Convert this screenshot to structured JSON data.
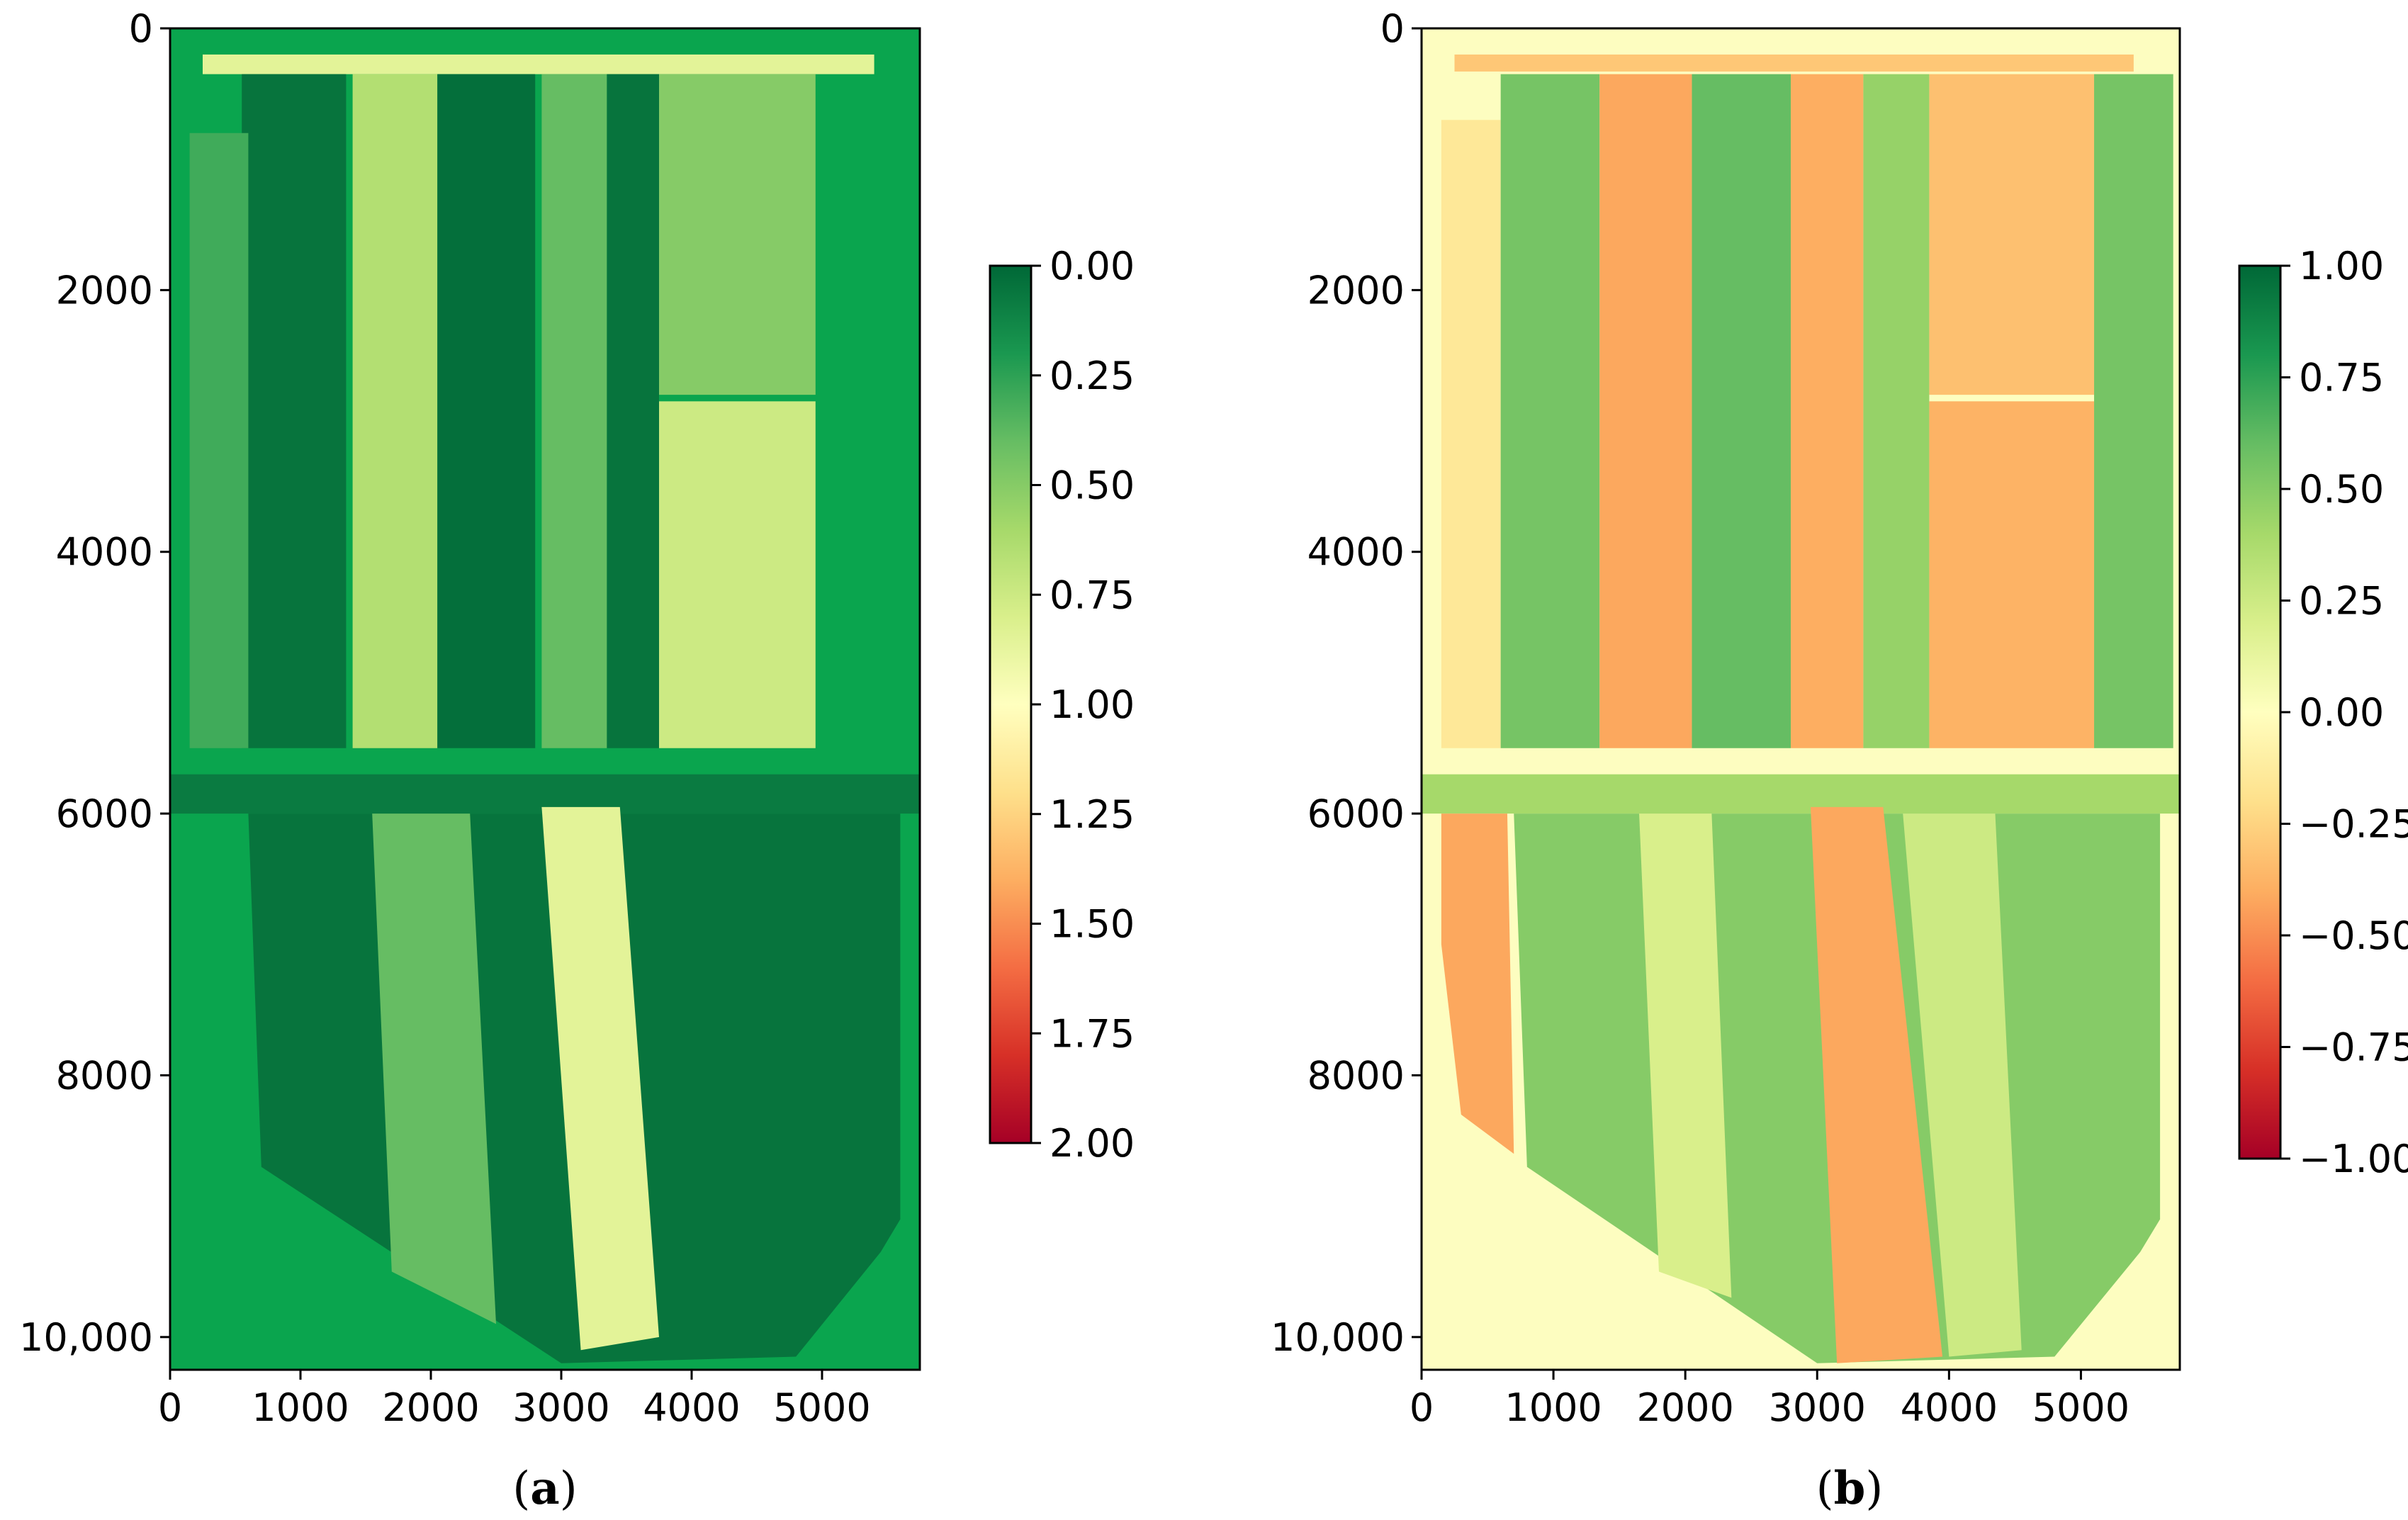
{
  "chart_data": [
    {
      "type": "heatmap",
      "panel_label": "a",
      "title": "",
      "xlabel": "",
      "ylabel": "",
      "xlim": [
        0,
        5750
      ],
      "ylim": [
        10250,
        0
      ],
      "x_ticks": [
        0,
        1000,
        2000,
        3000,
        4000,
        5000
      ],
      "x_tick_labels": [
        "0",
        "1000",
        "2000",
        "3000",
        "4000",
        "5000"
      ],
      "y_ticks": [
        0,
        2000,
        4000,
        6000,
        8000,
        10000
      ],
      "y_tick_labels": [
        "0",
        "2000",
        "4000",
        "6000",
        "8000",
        "10,000"
      ],
      "colormap": "RdYlGn (reversed)",
      "colorbar": {
        "min": 0.0,
        "max": 2.0,
        "inverted": true,
        "ticks": [
          0.0,
          0.25,
          0.5,
          0.75,
          1.0,
          1.25,
          1.5,
          1.75,
          2.0
        ],
        "tick_labels": [
          "0.00",
          "0.25",
          "0.50",
          "0.75",
          "1.00",
          "1.25",
          "1.50",
          "1.75",
          "2.00"
        ],
        "colors_top_to_bottom": [
          "#006837",
          "#1a9850",
          "#66bd63",
          "#a6d96a",
          "#d9ef8b",
          "#ffffbf",
          "#fee08b",
          "#fdae61",
          "#f46d43",
          "#d73027",
          "#a50026"
        ]
      },
      "background_value_color": "#0aa54e",
      "regions": [
        {
          "name": "field-top-strip",
          "kind": "rect",
          "x0": 250,
          "x1": 5400,
          "y0": 200,
          "y1": 350,
          "value": 0.85
        },
        {
          "name": "field-col-1",
          "kind": "rect",
          "x0": 550,
          "x1": 1350,
          "y0": 350,
          "y1": 5500,
          "value": 0.05
        },
        {
          "name": "field-strip-left",
          "kind": "rect",
          "x0": 150,
          "x1": 600,
          "y0": 800,
          "y1": 5500,
          "value": 0.3
        },
        {
          "name": "field-col-2",
          "kind": "rect",
          "x0": 1400,
          "x1": 2050,
          "y0": 350,
          "y1": 5500,
          "value": 0.65
        },
        {
          "name": "field-col-3",
          "kind": "rect",
          "x0": 2050,
          "x1": 2800,
          "y0": 350,
          "y1": 5500,
          "value": 0.03
        },
        {
          "name": "field-col-4",
          "kind": "rect",
          "x0": 2850,
          "x1": 3350,
          "y0": 350,
          "y1": 5500,
          "value": 0.4
        },
        {
          "name": "field-col-5",
          "kind": "rect",
          "x0": 3350,
          "x1": 3750,
          "y0": 350,
          "y1": 5500,
          "value": 0.05
        },
        {
          "name": "field-col-6a",
          "kind": "rect",
          "x0": 3750,
          "x1": 4950,
          "y0": 350,
          "y1": 2800,
          "value": 0.5
        },
        {
          "name": "field-col-6b",
          "kind": "rect",
          "x0": 3750,
          "x1": 4950,
          "y0": 2850,
          "y1": 5500,
          "value": 0.75
        },
        {
          "name": "road-horizontal",
          "kind": "rect",
          "x0": 0,
          "x1": 5750,
          "y0": 5700,
          "y1": 6000,
          "value": 0.08
        },
        {
          "name": "lower-block",
          "kind": "polygon",
          "points": [
            [
              600,
              6000
            ],
            [
              5600,
              6000
            ],
            [
              5600,
              9100
            ],
            [
              5450,
              9350
            ],
            [
              4800,
              10150
            ],
            [
              3000,
              10200
            ],
            [
              700,
              8700
            ],
            [
              600,
              6000
            ]
          ],
          "value": 0.05
        },
        {
          "name": "lower-stripe-bright",
          "kind": "polygon",
          "points": [
            [
              2850,
              5950
            ],
            [
              3450,
              5950
            ],
            [
              3750,
              10000
            ],
            [
              3150,
              10100
            ]
          ],
          "value": 0.85
        },
        {
          "name": "lower-stripe-mid",
          "kind": "polygon",
          "points": [
            [
              1550,
              6000
            ],
            [
              2300,
              6000
            ],
            [
              2500,
              9900
            ],
            [
              1700,
              9500
            ]
          ],
          "value": 0.4
        }
      ]
    },
    {
      "type": "heatmap",
      "panel_label": "b",
      "title": "",
      "xlabel": "",
      "ylabel": "",
      "xlim": [
        0,
        5750
      ],
      "ylim": [
        10250,
        0
      ],
      "x_ticks": [
        0,
        1000,
        2000,
        3000,
        4000,
        5000
      ],
      "x_tick_labels": [
        "0",
        "1000",
        "2000",
        "3000",
        "4000",
        "5000"
      ],
      "y_ticks": [
        0,
        2000,
        4000,
        6000,
        8000,
        10000
      ],
      "y_tick_labels": [
        "0",
        "2000",
        "4000",
        "6000",
        "8000",
        "10,000"
      ],
      "colormap": "RdYlGn",
      "colorbar": {
        "min": -1.0,
        "max": 1.0,
        "inverted": false,
        "ticks": [
          1.0,
          0.75,
          0.5,
          0.25,
          0.0,
          -0.25,
          -0.5,
          -0.75,
          -1.0
        ],
        "tick_labels": [
          "1.00",
          "0.75",
          "0.50",
          "0.25",
          "0.00",
          "−0.25",
          "−0.50",
          "−0.75",
          "−1.00"
        ],
        "colors_top_to_bottom": [
          "#006837",
          "#1a9850",
          "#66bd63",
          "#a6d96a",
          "#d9ef8b",
          "#ffffbf",
          "#fee08b",
          "#fdae61",
          "#f46d43",
          "#d73027",
          "#a50026"
        ]
      },
      "background_value_color": "#fdfdc0",
      "regions": [
        {
          "name": "field-top-strip",
          "kind": "rect",
          "x0": 250,
          "x1": 5400,
          "y0": 200,
          "y1": 330,
          "value": -0.3
        },
        {
          "name": "field-strip-left",
          "kind": "rect",
          "x0": 150,
          "x1": 600,
          "y0": 700,
          "y1": 5500,
          "value": -0.15
        },
        {
          "name": "field-col-1",
          "kind": "rect",
          "x0": 600,
          "x1": 1350,
          "y0": 350,
          "y1": 5500,
          "value": 0.55
        },
        {
          "name": "field-col-2",
          "kind": "rect",
          "x0": 1350,
          "x1": 2050,
          "y0": 350,
          "y1": 5500,
          "value": -0.42
        },
        {
          "name": "field-col-3",
          "kind": "rect",
          "x0": 2050,
          "x1": 2800,
          "y0": 350,
          "y1": 5500,
          "value": 0.6
        },
        {
          "name": "field-col-4",
          "kind": "rect",
          "x0": 2800,
          "x1": 3350,
          "y0": 350,
          "y1": 5500,
          "value": -0.4
        },
        {
          "name": "field-col-5",
          "kind": "rect",
          "x0": 3350,
          "x1": 3850,
          "y0": 350,
          "y1": 5500,
          "value": 0.45
        },
        {
          "name": "field-col-6a",
          "kind": "rect",
          "x0": 3850,
          "x1": 5100,
          "y0": 350,
          "y1": 2800,
          "value": -0.33
        },
        {
          "name": "field-col-6b",
          "kind": "rect",
          "x0": 3850,
          "x1": 5100,
          "y0": 2850,
          "y1": 5500,
          "value": -0.38
        },
        {
          "name": "field-col-7",
          "kind": "rect",
          "x0": 5100,
          "x1": 5700,
          "y0": 350,
          "y1": 5500,
          "value": 0.55
        },
        {
          "name": "road-horizontal",
          "kind": "rect",
          "x0": 0,
          "x1": 5750,
          "y0": 5700,
          "y1": 6000,
          "value": 0.4
        },
        {
          "name": "lower-block",
          "kind": "polygon",
          "points": [
            [
              700,
              6000
            ],
            [
              5600,
              6000
            ],
            [
              5600,
              9100
            ],
            [
              5450,
              9350
            ],
            [
              4800,
              10150
            ],
            [
              3000,
              10200
            ],
            [
              800,
              8700
            ],
            [
              700,
              6000
            ]
          ],
          "value": 0.5
        },
        {
          "name": "lower-left-field",
          "kind": "polygon",
          "points": [
            [
              150,
              6000
            ],
            [
              650,
              6000
            ],
            [
              700,
              8600
            ],
            [
              300,
              8300
            ],
            [
              150,
              7000
            ]
          ],
          "value": -0.42
        },
        {
          "name": "lower-field-orange-1",
          "kind": "polygon",
          "points": [
            [
              1650,
              6000
            ],
            [
              2200,
              6000
            ],
            [
              2350,
              9700
            ],
            [
              1800,
              9500
            ]
          ],
          "value": 0.2
        },
        {
          "name": "lower-field-orange-2",
          "kind": "polygon",
          "points": [
            [
              2950,
              5950
            ],
            [
              3500,
              5950
            ],
            [
              3950,
              10150
            ],
            [
              3150,
              10200
            ]
          ],
          "value": -0.42
        },
        {
          "name": "lower-field-light",
          "kind": "polygon",
          "points": [
            [
              3650,
              6000
            ],
            [
              4350,
              6000
            ],
            [
              4550,
              10100
            ],
            [
              4000,
              10150
            ]
          ],
          "value": 0.25
        }
      ]
    }
  ]
}
